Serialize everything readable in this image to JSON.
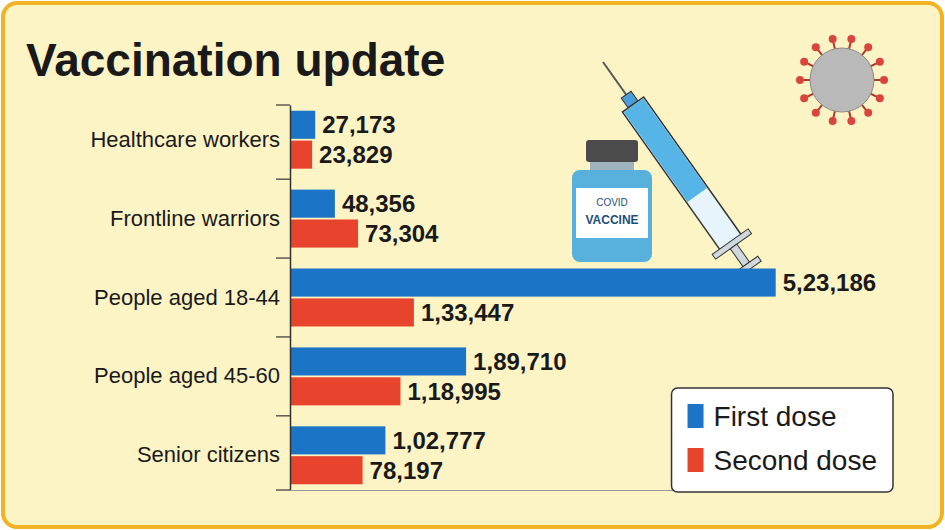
{
  "chart_data": {
    "type": "bar",
    "orientation": "horizontal",
    "title": "Vaccination update",
    "categories": [
      "Healthcare workers",
      "Frontline warriors",
      "People aged 18-44",
      "People aged 45-60",
      "Senior citizens"
    ],
    "series": [
      {
        "name": "First dose",
        "color": "#1b74c5",
        "values": [
          27173,
          48356,
          523186,
          189710,
          102777
        ],
        "value_labels": [
          "27,173",
          "48,356",
          "5,23,186",
          "1,89,710",
          "1,02,777"
        ]
      },
      {
        "name": "Second dose",
        "color": "#e8432d",
        "values": [
          23829,
          73304,
          133447,
          118995,
          78197
        ],
        "value_labels": [
          "23,829",
          "73,304",
          "1,33,447",
          "1,18,995",
          "78,197"
        ]
      }
    ],
    "xlim": [
      0,
      600000
    ],
    "data_labels": true,
    "tick_labels": "y",
    "legend": "lower right",
    "annotations": [
      "COVID",
      "VACCINE"
    ]
  }
}
